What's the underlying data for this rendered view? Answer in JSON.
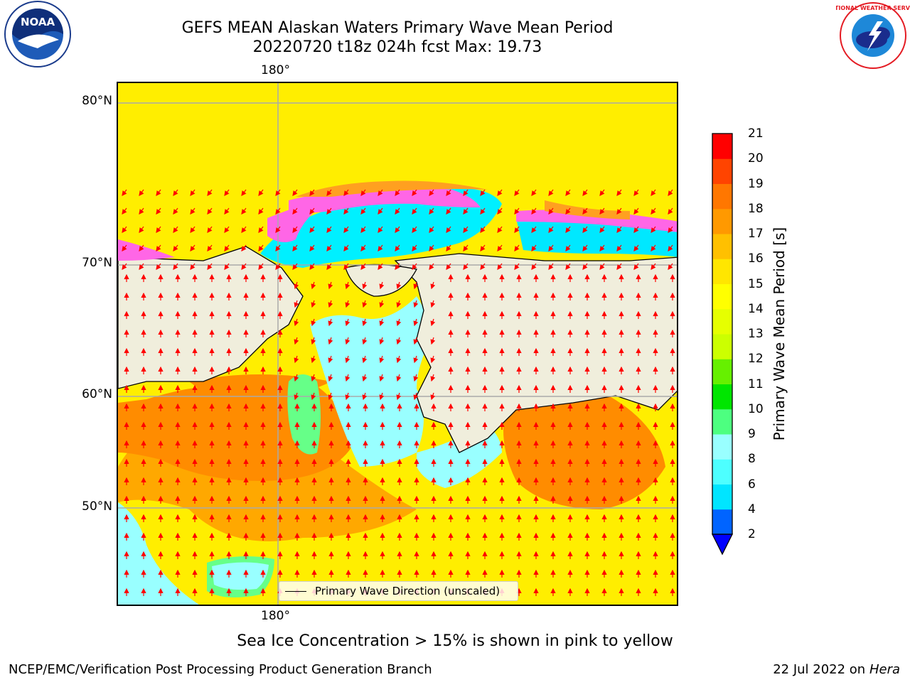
{
  "title_line1": "GEFS MEAN Alaskan Waters Primary Wave Mean Period",
  "title_line2": "20220720 t18z 024h fcst   Max: 19.73",
  "logos": {
    "left": {
      "icon": "noaa-logo",
      "text": "NOAA"
    },
    "right": {
      "icon": "nws-logo",
      "text": "NATIONAL WEATHER SERVICE"
    }
  },
  "map": {
    "lat_labels": [
      "80°N",
      "70°N",
      "60°N",
      "50°N"
    ],
    "lon_label_top": "180°",
    "lon_label_bottom": "180°",
    "legend_label": "Primary Wave Direction (unscaled)"
  },
  "colorbar": {
    "title": "Primary Wave Mean Period [s]",
    "ticks": [
      "21",
      "20",
      "19",
      "18",
      "17",
      "16",
      "15",
      "14",
      "13",
      "12",
      "11",
      "10",
      "9",
      "8",
      "6",
      "4",
      "2"
    ],
    "colors_bottom_to_top": [
      "#0064ff",
      "#00e5ff",
      "#4dffff",
      "#99ffff",
      "#4dff80",
      "#00e600",
      "#66f000",
      "#ccff00",
      "#e6ff00",
      "#ffff00",
      "#ffe600",
      "#ffc000",
      "#ff9900",
      "#ff7700",
      "#ff4400",
      "#ff0000"
    ],
    "extend_color": "#0000ff"
  },
  "note": "Sea Ice Concentration > 15% is shown in pink to yellow",
  "footer_left": "NCEP/EMC/Verification Post Processing Product Generation Branch",
  "footer_right_date": "22 Jul 2022 on",
  "footer_right_host": "Hera"
}
